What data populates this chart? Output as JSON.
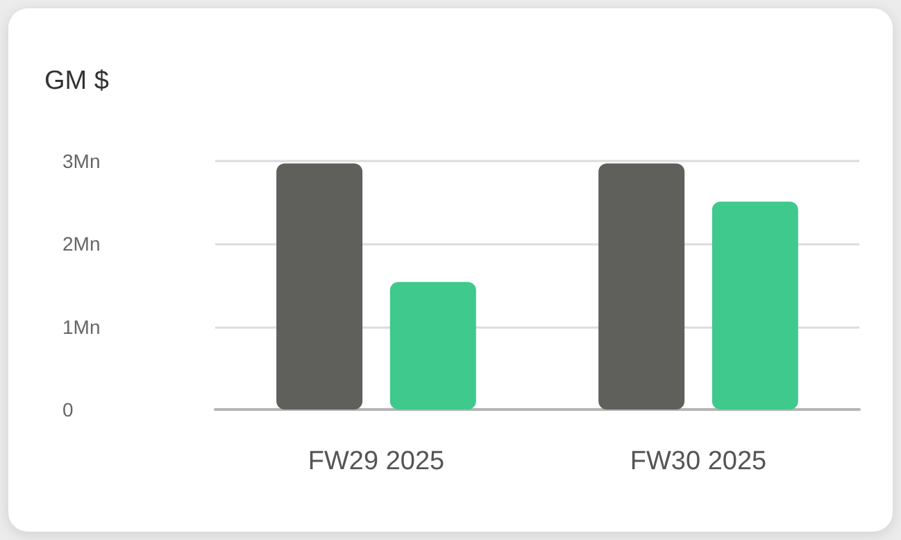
{
  "chart_data": {
    "type": "bar",
    "title": "GM $",
    "categories": [
      "FW29 2025",
      "FW30 2025"
    ],
    "series": [
      {
        "color": "#5f5f5c",
        "values": [
          2.97,
          2.97
        ]
      },
      {
        "color": "#3fc98c",
        "values": [
          1.54,
          2.51
        ]
      }
    ],
    "ylim": [
      0,
      3
    ],
    "yticks": [
      {
        "value": 0,
        "label": "0"
      },
      {
        "value": 1,
        "label": "1Mn"
      },
      {
        "value": 2,
        "label": "2Mn"
      },
      {
        "value": 3,
        "label": "3Mn"
      }
    ],
    "grid": "y"
  }
}
